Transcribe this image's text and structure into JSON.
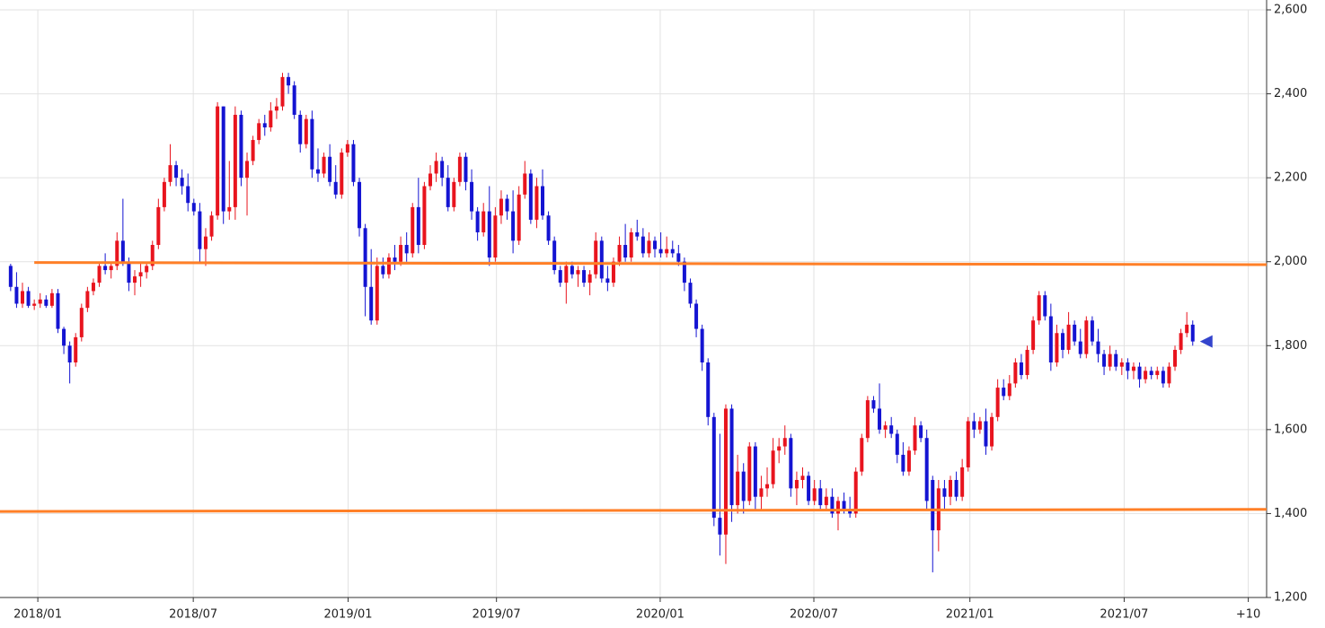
{
  "chart_data": {
    "type": "candlestick",
    "up_color": "#e8141e",
    "down_color": "#1414d2",
    "grid": true,
    "xlim": [
      -1.8,
      212.5
    ],
    "xticks": [
      {
        "value": 4.6,
        "label": "2018/01"
      },
      {
        "value": 30.9,
        "label": "2018/07"
      },
      {
        "value": 57.1,
        "label": "2019/01"
      },
      {
        "value": 82.2,
        "label": "2019/07"
      },
      {
        "value": 109.9,
        "label": "2020/01"
      },
      {
        "value": 135.9,
        "label": "2020/07"
      },
      {
        "value": 162.3,
        "label": "2021/01"
      },
      {
        "value": 188.4,
        "label": "2021/07"
      },
      {
        "value": 209.4,
        "label": "+10"
      }
    ],
    "ylim": [
      1200,
      2600
    ],
    "yticks": [
      {
        "value": 1200,
        "label": "1,200"
      },
      {
        "value": 1400,
        "label": "1,400"
      },
      {
        "value": 1600,
        "label": "1,600"
      },
      {
        "value": 1800,
        "label": "1,800"
      },
      {
        "value": 2000,
        "label": "2,000"
      },
      {
        "value": 2200,
        "label": "2,200"
      },
      {
        "value": 2400,
        "label": "2,400"
      },
      {
        "value": 2600,
        "label": "2,600"
      }
    ],
    "trend_lines": [
      {
        "x": [
          4.0,
          212.5
        ],
        "values": [
          1998,
          1993
        ],
        "color": "#ff7f27"
      },
      {
        "x": [
          -1.8,
          212.5
        ],
        "values": [
          1405,
          1410
        ],
        "color": "#ff7f27"
      }
    ],
    "current_price": 1810,
    "marker_color": "#3344cc",
    "candles": [
      [
        1990,
        1995,
        1930,
        1940
      ],
      [
        1940,
        1975,
        1890,
        1900
      ],
      [
        1900,
        1950,
        1890,
        1930
      ],
      [
        1930,
        1940,
        1890,
        1895
      ],
      [
        1895,
        1910,
        1885,
        1900
      ],
      [
        1900,
        1925,
        1890,
        1910
      ],
      [
        1910,
        1920,
        1890,
        1895
      ],
      [
        1895,
        1935,
        1890,
        1925
      ],
      [
        1925,
        1935,
        1830,
        1840
      ],
      [
        1840,
        1845,
        1780,
        1800
      ],
      [
        1800,
        1810,
        1710,
        1760
      ],
      [
        1760,
        1830,
        1750,
        1820
      ],
      [
        1820,
        1900,
        1810,
        1890
      ],
      [
        1890,
        1940,
        1880,
        1930
      ],
      [
        1930,
        1960,
        1920,
        1950
      ],
      [
        1950,
        2000,
        1940,
        1990
      ],
      [
        1990,
        2020,
        1970,
        1980
      ],
      [
        1980,
        2000,
        1960,
        1990
      ],
      [
        1990,
        2070,
        1980,
        2050
      ],
      [
        2050,
        2150,
        1990,
        2000
      ],
      [
        2000,
        2010,
        1930,
        1950
      ],
      [
        1950,
        1980,
        1920,
        1965
      ],
      [
        1965,
        2000,
        1940,
        1975
      ],
      [
        1975,
        2000,
        1960,
        1990
      ],
      [
        1990,
        2050,
        1980,
        2040
      ],
      [
        2040,
        2150,
        2030,
        2130
      ],
      [
        2130,
        2200,
        2120,
        2190
      ],
      [
        2190,
        2280,
        2180,
        2230
      ],
      [
        2230,
        2240,
        2180,
        2200
      ],
      [
        2200,
        2220,
        2160,
        2180
      ],
      [
        2180,
        2210,
        2120,
        2140
      ],
      [
        2140,
        2150,
        2110,
        2120
      ],
      [
        2120,
        2140,
        2000,
        2030
      ],
      [
        2030,
        2080,
        1990,
        2060
      ],
      [
        2060,
        2120,
        2050,
        2110
      ],
      [
        2110,
        2380,
        2100,
        2370
      ],
      [
        2370,
        2370,
        2090,
        2120
      ],
      [
        2120,
        2240,
        2100,
        2130
      ],
      [
        2130,
        2370,
        2100,
        2350
      ],
      [
        2350,
        2360,
        2180,
        2200
      ],
      [
        2200,
        2260,
        2110,
        2240
      ],
      [
        2240,
        2300,
        2230,
        2290
      ],
      [
        2290,
        2340,
        2280,
        2330
      ],
      [
        2330,
        2350,
        2300,
        2320
      ],
      [
        2320,
        2380,
        2310,
        2360
      ],
      [
        2360,
        2390,
        2340,
        2370
      ],
      [
        2370,
        2450,
        2360,
        2440
      ],
      [
        2440,
        2450,
        2400,
        2420
      ],
      [
        2420,
        2430,
        2340,
        2350
      ],
      [
        2350,
        2360,
        2260,
        2280
      ],
      [
        2280,
        2350,
        2270,
        2340
      ],
      [
        2340,
        2360,
        2200,
        2220
      ],
      [
        2220,
        2270,
        2190,
        2210
      ],
      [
        2210,
        2260,
        2200,
        2250
      ],
      [
        2250,
        2280,
        2180,
        2190
      ],
      [
        2190,
        2230,
        2150,
        2160
      ],
      [
        2160,
        2270,
        2150,
        2260
      ],
      [
        2260,
        2290,
        2250,
        2280
      ],
      [
        2280,
        2290,
        2180,
        2190
      ],
      [
        2190,
        2200,
        2060,
        2080
      ],
      [
        2080,
        2090,
        1870,
        1940
      ],
      [
        1940,
        2030,
        1850,
        1860
      ],
      [
        1860,
        2010,
        1850,
        1990
      ],
      [
        1990,
        2010,
        1960,
        1970
      ],
      [
        1970,
        2020,
        1960,
        2010
      ],
      [
        2010,
        2040,
        1980,
        2000
      ],
      [
        2000,
        2060,
        1990,
        2040
      ],
      [
        2040,
        2070,
        2000,
        2020
      ],
      [
        2020,
        2140,
        2010,
        2130
      ],
      [
        2130,
        2200,
        2020,
        2040
      ],
      [
        2040,
        2190,
        2030,
        2180
      ],
      [
        2180,
        2230,
        2170,
        2210
      ],
      [
        2210,
        2260,
        2190,
        2240
      ],
      [
        2240,
        2250,
        2180,
        2200
      ],
      [
        2200,
        2230,
        2120,
        2130
      ],
      [
        2130,
        2200,
        2120,
        2190
      ],
      [
        2190,
        2260,
        2180,
        2250
      ],
      [
        2250,
        2260,
        2170,
        2190
      ],
      [
        2190,
        2220,
        2100,
        2120
      ],
      [
        2120,
        2130,
        2050,
        2070
      ],
      [
        2070,
        2140,
        2060,
        2120
      ],
      [
        2120,
        2180,
        1990,
        2010
      ],
      [
        2010,
        2130,
        2000,
        2110
      ],
      [
        2110,
        2170,
        2090,
        2150
      ],
      [
        2150,
        2160,
        2100,
        2120
      ],
      [
        2120,
        2170,
        2020,
        2050
      ],
      [
        2050,
        2180,
        2040,
        2160
      ],
      [
        2160,
        2240,
        2150,
        2210
      ],
      [
        2210,
        2220,
        2090,
        2100
      ],
      [
        2100,
        2200,
        2080,
        2180
      ],
      [
        2180,
        2220,
        2100,
        2110
      ],
      [
        2110,
        2120,
        2040,
        2050
      ],
      [
        2050,
        2060,
        1970,
        1980
      ],
      [
        1980,
        1990,
        1940,
        1950
      ],
      [
        1950,
        2000,
        1900,
        1990
      ],
      [
        1990,
        2000,
        1960,
        1970
      ],
      [
        1970,
        1990,
        1940,
        1980
      ],
      [
        1980,
        1990,
        1940,
        1950
      ],
      [
        1950,
        1980,
        1920,
        1970
      ],
      [
        1970,
        2070,
        1960,
        2050
      ],
      [
        2050,
        2060,
        1950,
        1960
      ],
      [
        1960,
        1990,
        1930,
        1950
      ],
      [
        1950,
        2010,
        1940,
        2000
      ],
      [
        2000,
        2060,
        1990,
        2040
      ],
      [
        2040,
        2090,
        2000,
        2010
      ],
      [
        2010,
        2080,
        2000,
        2070
      ],
      [
        2070,
        2100,
        2050,
        2060
      ],
      [
        2060,
        2080,
        2010,
        2020
      ],
      [
        2020,
        2070,
        2010,
        2050
      ],
      [
        2050,
        2060,
        2010,
        2030
      ],
      [
        2030,
        2070,
        2010,
        2020
      ],
      [
        2020,
        2060,
        2010,
        2030
      ],
      [
        2030,
        2050,
        2010,
        2020
      ],
      [
        2020,
        2040,
        1990,
        2000
      ],
      [
        2000,
        2010,
        1930,
        1950
      ],
      [
        1950,
        1960,
        1890,
        1900
      ],
      [
        1900,
        1910,
        1820,
        1840
      ],
      [
        1840,
        1850,
        1740,
        1760
      ],
      [
        1760,
        1770,
        1610,
        1630
      ],
      [
        1630,
        1640,
        1370,
        1390
      ],
      [
        1390,
        1590,
        1300,
        1350
      ],
      [
        1350,
        1660,
        1280,
        1650
      ],
      [
        1650,
        1660,
        1380,
        1420
      ],
      [
        1420,
        1540,
        1400,
        1500
      ],
      [
        1500,
        1520,
        1400,
        1430
      ],
      [
        1430,
        1570,
        1420,
        1560
      ],
      [
        1560,
        1570,
        1410,
        1440
      ],
      [
        1440,
        1490,
        1410,
        1460
      ],
      [
        1460,
        1510,
        1440,
        1470
      ],
      [
        1470,
        1580,
        1460,
        1550
      ],
      [
        1550,
        1580,
        1520,
        1560
      ],
      [
        1560,
        1610,
        1540,
        1580
      ],
      [
        1580,
        1590,
        1440,
        1460
      ],
      [
        1460,
        1500,
        1420,
        1480
      ],
      [
        1480,
        1510,
        1460,
        1490
      ],
      [
        1490,
        1500,
        1420,
        1430
      ],
      [
        1430,
        1480,
        1420,
        1460
      ],
      [
        1460,
        1480,
        1410,
        1420
      ],
      [
        1420,
        1460,
        1410,
        1440
      ],
      [
        1440,
        1460,
        1390,
        1400
      ],
      [
        1400,
        1440,
        1360,
        1430
      ],
      [
        1430,
        1450,
        1400,
        1410
      ],
      [
        1410,
        1440,
        1390,
        1400
      ],
      [
        1400,
        1510,
        1390,
        1500
      ],
      [
        1500,
        1590,
        1490,
        1580
      ],
      [
        1580,
        1680,
        1570,
        1670
      ],
      [
        1670,
        1680,
        1640,
        1650
      ],
      [
        1650,
        1710,
        1590,
        1600
      ],
      [
        1600,
        1620,
        1580,
        1610
      ],
      [
        1610,
        1630,
        1580,
        1590
      ],
      [
        1590,
        1600,
        1520,
        1540
      ],
      [
        1540,
        1570,
        1490,
        1500
      ],
      [
        1500,
        1560,
        1490,
        1550
      ],
      [
        1550,
        1630,
        1540,
        1610
      ],
      [
        1610,
        1620,
        1570,
        1580
      ],
      [
        1580,
        1600,
        1410,
        1430
      ],
      [
        1480,
        1490,
        1260,
        1360
      ],
      [
        1360,
        1480,
        1310,
        1460
      ],
      [
        1460,
        1480,
        1410,
        1440
      ],
      [
        1440,
        1490,
        1420,
        1480
      ],
      [
        1480,
        1500,
        1430,
        1440
      ],
      [
        1440,
        1530,
        1430,
        1510
      ],
      [
        1510,
        1630,
        1500,
        1620
      ],
      [
        1620,
        1640,
        1580,
        1600
      ],
      [
        1600,
        1630,
        1590,
        1620
      ],
      [
        1620,
        1650,
        1540,
        1560
      ],
      [
        1560,
        1640,
        1550,
        1630
      ],
      [
        1630,
        1720,
        1620,
        1700
      ],
      [
        1700,
        1720,
        1670,
        1680
      ],
      [
        1680,
        1730,
        1670,
        1710
      ],
      [
        1710,
        1770,
        1700,
        1760
      ],
      [
        1760,
        1780,
        1720,
        1730
      ],
      [
        1730,
        1800,
        1720,
        1790
      ],
      [
        1790,
        1870,
        1780,
        1860
      ],
      [
        1860,
        1930,
        1850,
        1920
      ],
      [
        1920,
        1930,
        1860,
        1870
      ],
      [
        1870,
        1900,
        1740,
        1760
      ],
      [
        1760,
        1850,
        1750,
        1830
      ],
      [
        1830,
        1840,
        1770,
        1790
      ],
      [
        1790,
        1880,
        1780,
        1850
      ],
      [
        1850,
        1860,
        1800,
        1810
      ],
      [
        1810,
        1840,
        1770,
        1780
      ],
      [
        1780,
        1870,
        1770,
        1860
      ],
      [
        1860,
        1870,
        1800,
        1810
      ],
      [
        1810,
        1840,
        1760,
        1780
      ],
      [
        1780,
        1790,
        1730,
        1750
      ],
      [
        1750,
        1800,
        1740,
        1780
      ],
      [
        1780,
        1790,
        1740,
        1750
      ],
      [
        1750,
        1770,
        1730,
        1760
      ],
      [
        1760,
        1770,
        1720,
        1740
      ],
      [
        1740,
        1760,
        1720,
        1750
      ],
      [
        1750,
        1760,
        1700,
        1720
      ],
      [
        1720,
        1750,
        1710,
        1740
      ],
      [
        1740,
        1750,
        1720,
        1730
      ],
      [
        1730,
        1750,
        1720,
        1740
      ],
      [
        1740,
        1750,
        1700,
        1710
      ],
      [
        1710,
        1760,
        1700,
        1750
      ],
      [
        1750,
        1800,
        1740,
        1790
      ],
      [
        1790,
        1840,
        1780,
        1830
      ],
      [
        1830,
        1880,
        1820,
        1850
      ],
      [
        1850,
        1860,
        1800,
        1810
      ]
    ]
  }
}
